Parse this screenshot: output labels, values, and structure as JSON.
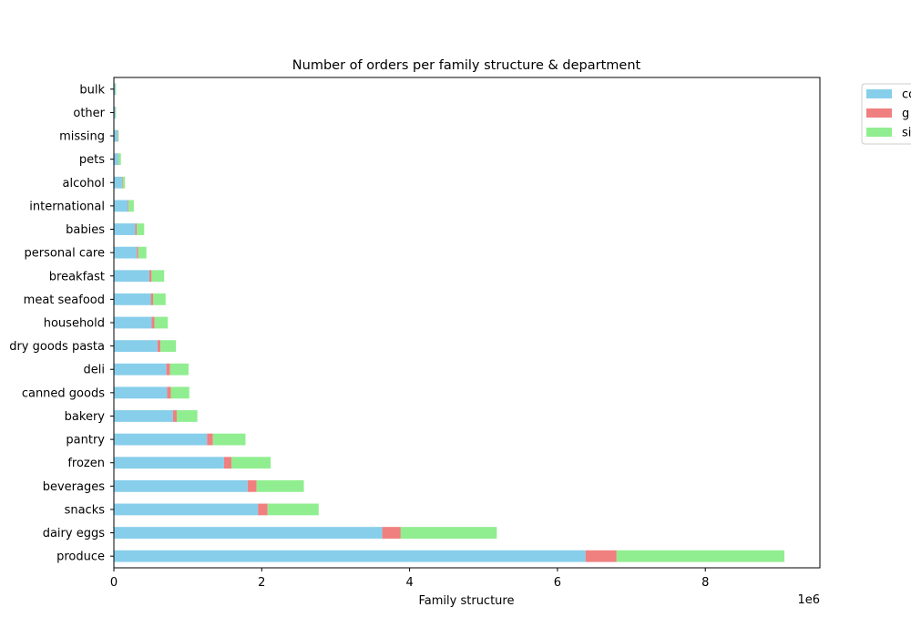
{
  "chart_data": {
    "type": "bar",
    "orientation": "horizontal",
    "stacked": true,
    "title": "Number of orders per family structure & department",
    "xlabel": "Family structure",
    "ylabel": "",
    "x_offset_text": "1e6",
    "xlim": [
      0,
      9550000
    ],
    "xticks": [
      0,
      2000000,
      4000000,
      6000000,
      8000000
    ],
    "xtick_labels": [
      "0",
      "2",
      "4",
      "6",
      "8"
    ],
    "grid": false,
    "legend_position": "outside upper-right (clipped)",
    "categories": [
      "produce",
      "dairy eggs",
      "snacks",
      "beverages",
      "frozen",
      "pantry",
      "bakery",
      "canned goods",
      "deli",
      "dry goods pasta",
      "household",
      "meat seafood",
      "breakfast",
      "personal care",
      "babies",
      "international",
      "alcohol",
      "pets",
      "missing",
      "other",
      "bulk"
    ],
    "series": [
      {
        "name": "co",
        "color": "#87ceeb",
        "values": [
          6380000,
          3630000,
          1950000,
          1810000,
          1490000,
          1260000,
          800000,
          720000,
          710000,
          590000,
          510000,
          500000,
          480000,
          310000,
          290000,
          190000,
          110000,
          60000,
          50000,
          20000,
          20000
        ]
      },
      {
        "name": "g",
        "color": "#f08080",
        "values": [
          420000,
          250000,
          130000,
          120000,
          100000,
          80000,
          50000,
          50000,
          50000,
          40000,
          40000,
          30000,
          30000,
          20000,
          20000,
          10000,
          10000,
          5000,
          5000,
          3000,
          2000
        ]
      },
      {
        "name": "si",
        "color": "#90ee90",
        "values": [
          2270000,
          1300000,
          690000,
          640000,
          530000,
          440000,
          280000,
          250000,
          250000,
          210000,
          180000,
          170000,
          170000,
          110000,
          100000,
          70000,
          30000,
          30000,
          10000,
          7000,
          8000
        ]
      }
    ]
  }
}
